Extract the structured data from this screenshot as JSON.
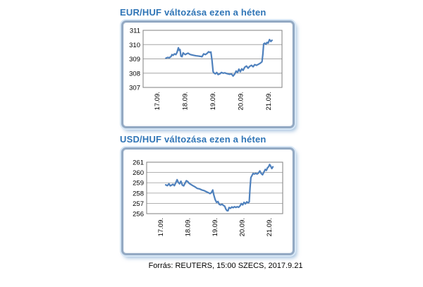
{
  "page_background": "#ffffff",
  "source_note": "Forrás: REUTERS, 15:00 SZECS, 2017.9.21",
  "colors": {
    "title_text": "#2e74b6",
    "series_line": "#4f81bd",
    "gridline": "#a6a6a6",
    "plot_border": "#7f7f7f",
    "frame_border": "#93a9c3",
    "frame_glow": "#d7e7f6",
    "axis_text": "#000000"
  },
  "chart_data": [
    {
      "type": "line",
      "title": "EUR/HUF változása ezen a héten",
      "series_name": "EUR/HUF",
      "xlabel": "",
      "ylabel": "",
      "ylim": [
        307,
        311
      ],
      "y_ticks": [
        307,
        308,
        309,
        310,
        311
      ],
      "x_labels": [
        "17.09.",
        "18.09.",
        "19.09.",
        "20.09.",
        "21.09."
      ],
      "x_label_positions_days": [
        0.5,
        1.5,
        2.5,
        3.5,
        4.5
      ],
      "xlim_days": [
        0,
        5
      ],
      "grid": true,
      "legend": false,
      "points": [
        [
          0.82,
          309.05
        ],
        [
          0.88,
          309.1
        ],
        [
          0.94,
          309.08
        ],
        [
          1.0,
          309.15
        ],
        [
          1.04,
          309.3
        ],
        [
          1.08,
          309.25
        ],
        [
          1.13,
          309.35
        ],
        [
          1.18,
          309.3
        ],
        [
          1.22,
          309.45
        ],
        [
          1.27,
          309.78
        ],
        [
          1.3,
          309.6
        ],
        [
          1.33,
          309.65
        ],
        [
          1.36,
          309.2
        ],
        [
          1.4,
          309.15
        ],
        [
          1.44,
          309.42
        ],
        [
          1.48,
          309.35
        ],
        [
          1.52,
          309.3
        ],
        [
          1.56,
          309.35
        ],
        [
          1.62,
          309.4
        ],
        [
          1.68,
          309.32
        ],
        [
          1.75,
          309.28
        ],
        [
          1.82,
          309.25
        ],
        [
          1.9,
          309.22
        ],
        [
          1.98,
          309.2
        ],
        [
          2.05,
          309.18
        ],
        [
          2.12,
          309.15
        ],
        [
          2.18,
          309.35
        ],
        [
          2.24,
          309.3
        ],
        [
          2.3,
          309.38
        ],
        [
          2.36,
          309.5
        ],
        [
          2.4,
          309.45
        ],
        [
          2.44,
          309.48
        ],
        [
          2.48,
          308.9
        ],
        [
          2.52,
          308.1
        ],
        [
          2.56,
          308.0
        ],
        [
          2.6,
          307.95
        ],
        [
          2.65,
          308.05
        ],
        [
          2.7,
          307.9
        ],
        [
          2.76,
          307.95
        ],
        [
          2.82,
          308.05
        ],
        [
          2.88,
          308.0
        ],
        [
          2.94,
          308.02
        ],
        [
          3.0,
          307.98
        ],
        [
          3.06,
          307.95
        ],
        [
          3.12,
          307.92
        ],
        [
          3.18,
          307.95
        ],
        [
          3.24,
          307.8
        ],
        [
          3.3,
          307.95
        ],
        [
          3.35,
          308.15
        ],
        [
          3.4,
          308.05
        ],
        [
          3.45,
          308.28
        ],
        [
          3.5,
          308.1
        ],
        [
          3.55,
          308.3
        ],
        [
          3.6,
          308.2
        ],
        [
          3.66,
          308.42
        ],
        [
          3.72,
          308.5
        ],
        [
          3.78,
          308.35
        ],
        [
          3.84,
          308.48
        ],
        [
          3.9,
          308.55
        ],
        [
          3.96,
          308.45
        ],
        [
          4.02,
          308.6
        ],
        [
          4.08,
          308.55
        ],
        [
          4.15,
          308.62
        ],
        [
          4.22,
          308.7
        ],
        [
          4.28,
          308.8
        ],
        [
          4.31,
          309.3
        ],
        [
          4.34,
          310.05
        ],
        [
          4.38,
          310.1
        ],
        [
          4.42,
          310.02
        ],
        [
          4.46,
          310.15
        ],
        [
          4.5,
          310.1
        ],
        [
          4.55,
          310.35
        ],
        [
          4.6,
          310.22
        ],
        [
          4.64,
          310.3
        ]
      ]
    },
    {
      "type": "line",
      "title": "USD/HUF változása ezen a héten",
      "series_name": "USD/HUF",
      "xlabel": "",
      "ylabel": "",
      "ylim": [
        256,
        261
      ],
      "y_ticks": [
        256,
        257,
        258,
        259,
        260,
        261
      ],
      "x_labels": [
        "17.09.",
        "18.09.",
        "19.09.",
        "20.09.",
        "21.09."
      ],
      "x_label_positions_days": [
        0.5,
        1.5,
        2.5,
        3.5,
        4.5
      ],
      "xlim_days": [
        0,
        5
      ],
      "grid": true,
      "legend": false,
      "points": [
        [
          0.7,
          258.8
        ],
        [
          0.76,
          258.72
        ],
        [
          0.82,
          258.9
        ],
        [
          0.87,
          258.7
        ],
        [
          0.92,
          258.78
        ],
        [
          0.97,
          258.85
        ],
        [
          1.02,
          258.72
        ],
        [
          1.07,
          259.0
        ],
        [
          1.12,
          259.3
        ],
        [
          1.16,
          259.05
        ],
        [
          1.21,
          258.9
        ],
        [
          1.26,
          259.15
        ],
        [
          1.31,
          258.78
        ],
        [
          1.36,
          258.7
        ],
        [
          1.41,
          258.95
        ],
        [
          1.46,
          259.2
        ],
        [
          1.51,
          259.12
        ],
        [
          1.56,
          258.95
        ],
        [
          1.62,
          258.85
        ],
        [
          1.7,
          258.72
        ],
        [
          1.78,
          258.6
        ],
        [
          1.86,
          258.45
        ],
        [
          1.95,
          258.4
        ],
        [
          2.03,
          258.3
        ],
        [
          2.1,
          258.25
        ],
        [
          2.18,
          258.15
        ],
        [
          2.26,
          258.05
        ],
        [
          2.33,
          257.95
        ],
        [
          2.38,
          258.05
        ],
        [
          2.43,
          258.3
        ],
        [
          2.47,
          257.8
        ],
        [
          2.52,
          257.35
        ],
        [
          2.57,
          257.1
        ],
        [
          2.62,
          257.18
        ],
        [
          2.67,
          256.9
        ],
        [
          2.72,
          256.85
        ],
        [
          2.77,
          256.92
        ],
        [
          2.82,
          256.8
        ],
        [
          2.87,
          256.72
        ],
        [
          2.91,
          256.45
        ],
        [
          2.95,
          256.3
        ],
        [
          2.99,
          256.28
        ],
        [
          3.03,
          256.6
        ],
        [
          3.08,
          256.52
        ],
        [
          3.13,
          256.65
        ],
        [
          3.18,
          256.58
        ],
        [
          3.23,
          256.68
        ],
        [
          3.28,
          256.6
        ],
        [
          3.33,
          256.68
        ],
        [
          3.38,
          256.62
        ],
        [
          3.43,
          256.75
        ],
        [
          3.48,
          256.98
        ],
        [
          3.53,
          256.85
        ],
        [
          3.58,
          257.1
        ],
        [
          3.63,
          256.95
        ],
        [
          3.68,
          257.15
        ],
        [
          3.73,
          257.05
        ],
        [
          3.77,
          257.15
        ],
        [
          3.8,
          258.5
        ],
        [
          3.83,
          259.5
        ],
        [
          3.87,
          259.7
        ],
        [
          3.91,
          259.9
        ],
        [
          3.96,
          259.85
        ],
        [
          4.01,
          259.92
        ],
        [
          4.06,
          259.85
        ],
        [
          4.11,
          259.95
        ],
        [
          4.16,
          260.15
        ],
        [
          4.21,
          259.9
        ],
        [
          4.26,
          259.78
        ],
        [
          4.31,
          260.05
        ],
        [
          4.36,
          260.3
        ],
        [
          4.4,
          260.2
        ],
        [
          4.44,
          260.45
        ],
        [
          4.48,
          260.55
        ],
        [
          4.52,
          260.78
        ],
        [
          4.56,
          260.6
        ],
        [
          4.6,
          260.38
        ],
        [
          4.64,
          260.55
        ]
      ]
    }
  ]
}
